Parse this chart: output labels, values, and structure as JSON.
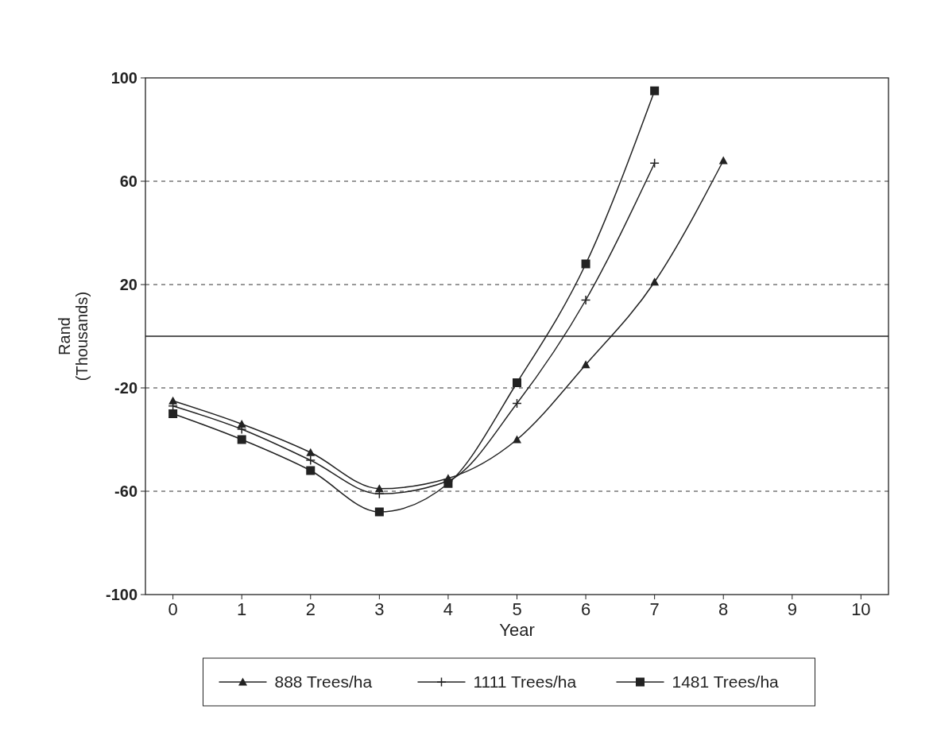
{
  "chart_data": {
    "type": "line",
    "xlabel": "Year",
    "ylabel": "Rand\n(Thousands)",
    "x": [
      0,
      1,
      2,
      3,
      4,
      5,
      6,
      7,
      8
    ],
    "xlim": [
      -0.4,
      10.4
    ],
    "xticks": [
      0,
      1,
      2,
      3,
      4,
      5,
      6,
      7,
      8,
      9,
      10
    ],
    "ylim": [
      -100,
      100
    ],
    "yticks": [
      -100,
      -60,
      -20,
      20,
      60,
      100
    ],
    "grid": "y",
    "line_style": "solid",
    "legend": "bottom",
    "ref_lines": [
      {
        "axis": "y",
        "value": 0,
        "line_style": "solid",
        "color": "#222222"
      }
    ],
    "series": [
      {
        "name": "888 Trees/ha",
        "color": "#222222",
        "marker": "triangle",
        "values": [
          -25,
          -34,
          -45,
          -59,
          -55,
          -40,
          -11,
          21,
          68
        ]
      },
      {
        "name": "1111 Trees/ha",
        "color": "#222222",
        "marker": "cross",
        "values": [
          -27,
          -36,
          -48,
          -61,
          -56,
          -26,
          14,
          67,
          null
        ]
      },
      {
        "name": "1481 Trees/ha",
        "color": "#222222",
        "marker": "square",
        "values": [
          -30,
          -40,
          -52,
          -68,
          -57,
          -18,
          28,
          95,
          null
        ]
      }
    ]
  }
}
